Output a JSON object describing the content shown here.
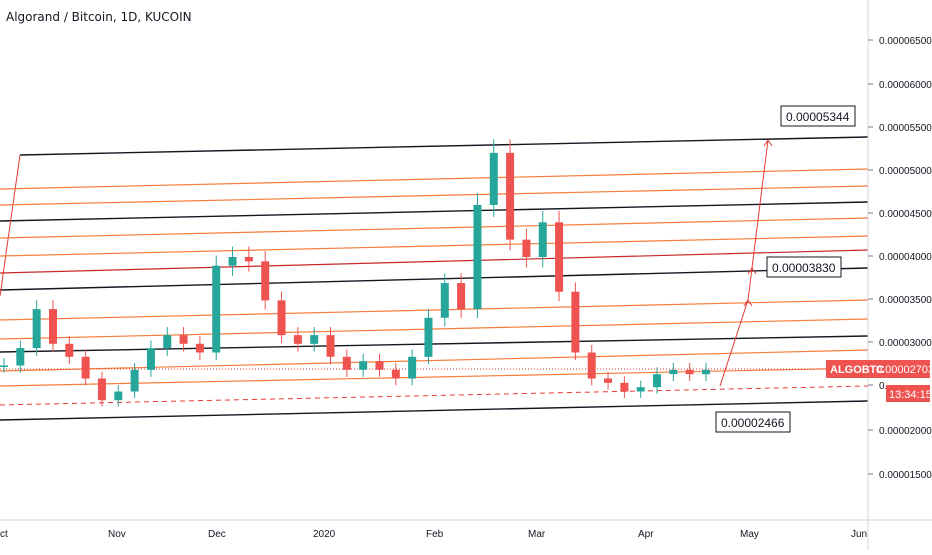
{
  "header": {
    "title": "Algorand / Bitcoin, 1D, KUCOIN"
  },
  "price_axis": {
    "ticks": [
      "0.00006500",
      "0.00006000",
      "0.00005500",
      "0.00005000",
      "0.00004500",
      "0.00004000",
      "0.00003500",
      "0.00003000",
      "0.00002000",
      "0.00001500"
    ],
    "partial_tick": "0."
  },
  "time_axis": {
    "ticks": [
      "ct",
      "Nov",
      "Dec",
      "2020",
      "Feb",
      "Mar",
      "Apr",
      "May",
      "Jun"
    ]
  },
  "annotations": {
    "target_high": "0.00005344",
    "target_mid": "0.00003830",
    "support_low": "0.00002466"
  },
  "symbol_badge": {
    "symbol": "ALGOBTC",
    "price": "0.00002703",
    "countdown": "13:34:15"
  },
  "colors": {
    "up_candle": "#26a69a",
    "down_candle": "#ef5350",
    "fib_line": "#f57c3a",
    "channel_line": "#131722",
    "accent_red": "#e53935"
  },
  "chart_data": {
    "type": "candlestick",
    "title": "Algorand / Bitcoin, 1D, KUCOIN",
    "ylim": [
      1.1e-05,
      7.1e-05
    ],
    "x": [
      "ct",
      "Nov",
      "Dec",
      "2020",
      "Feb",
      "Mar",
      "Apr",
      "May",
      "Jun"
    ],
    "close_series": [
      {
        "date": "Oct",
        "value": 2.75e-05
      },
      {
        "date": "Oct",
        "value": 2.95e-05
      },
      {
        "date": "Oct",
        "value": 3.4e-05
      },
      {
        "date": "Oct",
        "value": 3e-05
      },
      {
        "date": "Oct",
        "value": 2.85e-05
      },
      {
        "date": "Oct",
        "value": 2.6e-05
      },
      {
        "date": "Nov",
        "value": 2.35e-05
      },
      {
        "date": "Nov",
        "value": 2.45e-05
      },
      {
        "date": "Nov",
        "value": 2.7e-05
      },
      {
        "date": "Nov",
        "value": 2.95e-05
      },
      {
        "date": "Nov",
        "value": 3.1e-05
      },
      {
        "date": "Nov",
        "value": 3e-05
      },
      {
        "date": "Nov",
        "value": 2.9e-05
      },
      {
        "date": "Dec",
        "value": 3.9e-05
      },
      {
        "date": "Dec",
        "value": 4e-05
      },
      {
        "date": "Dec",
        "value": 3.95e-05
      },
      {
        "date": "Dec",
        "value": 3.5e-05
      },
      {
        "date": "Dec",
        "value": 3.1e-05
      },
      {
        "date": "Dec",
        "value": 3e-05
      },
      {
        "date": "Dec",
        "value": 3.1e-05
      },
      {
        "date": "2020",
        "value": 2.85e-05
      },
      {
        "date": "2020",
        "value": 2.7e-05
      },
      {
        "date": "2020",
        "value": 2.8e-05
      },
      {
        "date": "2020",
        "value": 2.7e-05
      },
      {
        "date": "Jan",
        "value": 2.6e-05
      },
      {
        "date": "Jan",
        "value": 2.85e-05
      },
      {
        "date": "Jan",
        "value": 3.3e-05
      },
      {
        "date": "Jan",
        "value": 3.7e-05
      },
      {
        "date": "Feb",
        "value": 3.4e-05
      },
      {
        "date": "Feb",
        "value": 4.6e-05
      },
      {
        "date": "Feb",
        "value": 5.2e-05
      },
      {
        "date": "Feb",
        "value": 4.2e-05
      },
      {
        "date": "Feb",
        "value": 4e-05
      },
      {
        "date": "Feb",
        "value": 4.4e-05
      },
      {
        "date": "Mar",
        "value": 3.6e-05
      },
      {
        "date": "Mar",
        "value": 2.9e-05
      },
      {
        "date": "Mar",
        "value": 2.6e-05
      },
      {
        "date": "Mar",
        "value": 2.55e-05
      },
      {
        "date": "Mar",
        "value": 2.45e-05
      },
      {
        "date": "Apr",
        "value": 2.5e-05
      },
      {
        "date": "Apr",
        "value": 2.65e-05
      },
      {
        "date": "Apr",
        "value": 2.7e-05
      },
      {
        "date": "Apr",
        "value": 2.65e-05
      },
      {
        "date": "Apr",
        "value": 2.7e-05
      }
    ],
    "last_price": 2.703e-05,
    "targets": [
      5.344e-05,
      3.83e-05
    ],
    "support": 2.466e-05
  }
}
